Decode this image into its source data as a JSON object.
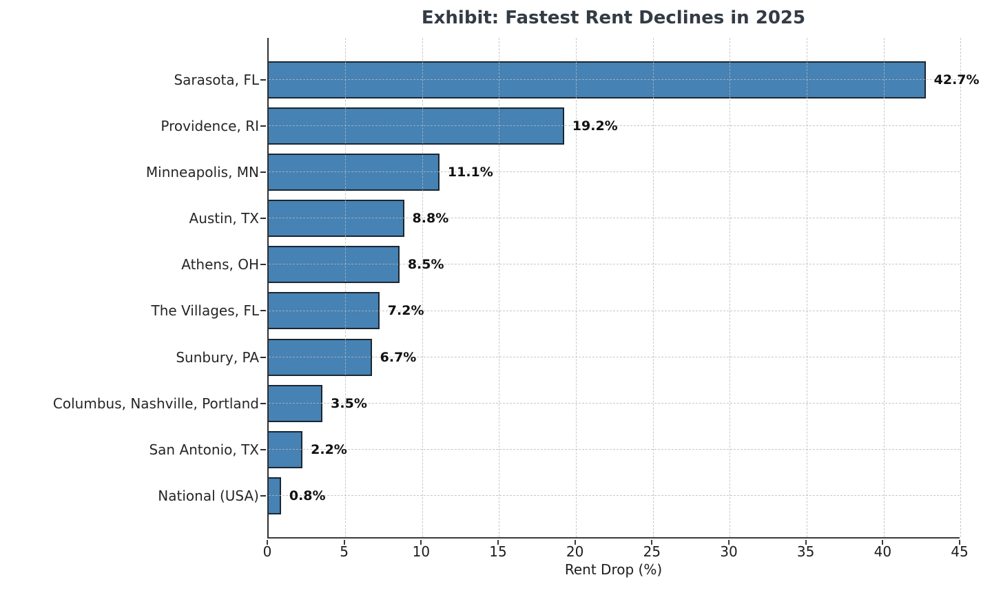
{
  "chart_data": {
    "type": "bar",
    "orientation": "horizontal",
    "title": "Exhibit: Fastest Rent Declines in 2025",
    "xlabel": "Rent Drop (%)",
    "ylabel": "",
    "categories": [
      "Sarasota, FL",
      "Providence, RI",
      "Minneapolis, MN",
      "Austin, TX",
      "Athens, OH",
      "The Villages, FL",
      "Sunbury, PA",
      "Columbus, Nashville, Portland",
      "San Antonio, TX",
      "National (USA)"
    ],
    "values": [
      42.7,
      19.2,
      11.1,
      8.8,
      8.5,
      7.2,
      6.7,
      3.5,
      2.2,
      0.8
    ],
    "value_labels": [
      "42.7%",
      "19.2%",
      "11.1%",
      "8.8%",
      "8.5%",
      "7.2%",
      "6.7%",
      "3.5%",
      "2.2%",
      "0.8%"
    ],
    "xlim": [
      0,
      45
    ],
    "xticks": [
      0,
      5,
      10,
      15,
      20,
      25,
      30,
      35,
      40,
      45
    ],
    "grid": true,
    "grid_style": "dashed",
    "legend": "none",
    "colors": {
      "bar_fill": "#4682B4",
      "bar_edge": "#1b2631",
      "grid": "#b9b9b9",
      "title": "#333b45",
      "text": "#1a1a1a",
      "spine": "#2e2e2e"
    }
  }
}
